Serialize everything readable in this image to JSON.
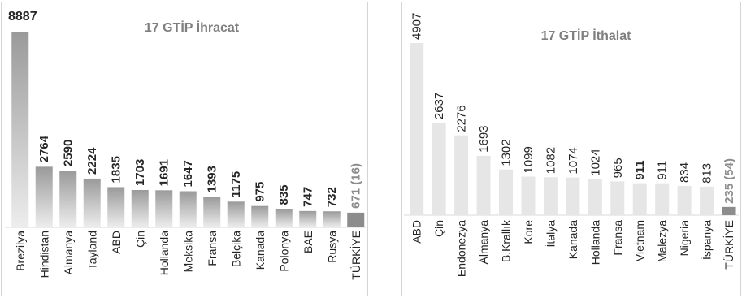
{
  "chart_data": [
    {
      "type": "bar",
      "title": "17 GTİP İhracat",
      "categories": [
        "Brezilya",
        "Hindistan",
        "Almanya",
        "Tayland",
        "ABD",
        "Çin",
        "Hollanda",
        "Meksika",
        "Fransa",
        "Belçika",
        "Kanada",
        "Polonya",
        "BAE",
        "Rusya",
        "TÜRKİYE"
      ],
      "values": [
        8887,
        2764,
        2590,
        2224,
        1835,
        1703,
        1691,
        1647,
        1393,
        1175,
        975,
        835,
        747,
        732,
        671
      ],
      "value_labels": [
        "8887",
        "2764",
        "2590",
        "2224",
        "1835",
        "1703",
        "1691",
        "1647",
        "1393",
        "1175",
        "975",
        "835",
        "747",
        "732",
        "671 (16)"
      ],
      "label_emphasis": "bold",
      "highlight_category": "TÜRKİYE",
      "colors": {
        "bar_top": "#9a9a9a",
        "bar_bottom": "#ededed",
        "highlight": "#8c8c8c"
      },
      "ylim": [
        0,
        9000
      ],
      "grid": false
    },
    {
      "type": "bar",
      "title": "17 GTİP İthalat",
      "categories": [
        "ABD",
        "Çin",
        "Endonezya",
        "Almanya",
        "B.Krallık",
        "Kore",
        "İtalya",
        "Kanada",
        "Hollanda",
        "Fransa",
        "Vietnam",
        "Malezya",
        "Nigeria",
        "İspanya",
        "TÜRKİYE"
      ],
      "values": [
        4907,
        2637,
        2276,
        1693,
        1302,
        1099,
        1082,
        1074,
        1024,
        965,
        911,
        911,
        834,
        813,
        235
      ],
      "value_labels": [
        "4907",
        "2637",
        "2276",
        "1693",
        "1302",
        "1099",
        "1082",
        "1074",
        "1024",
        "965",
        "911",
        "911",
        "834",
        "813",
        "235 (54)"
      ],
      "bold_labels": [
        "Vietnam",
        "TÜRKİYE"
      ],
      "highlight_category": "TÜRKİYE",
      "colors": {
        "bar": "#e6e6e6",
        "highlight": "#8c8c8c"
      },
      "ylim": [
        0,
        4907
      ],
      "grid": false
    }
  ]
}
